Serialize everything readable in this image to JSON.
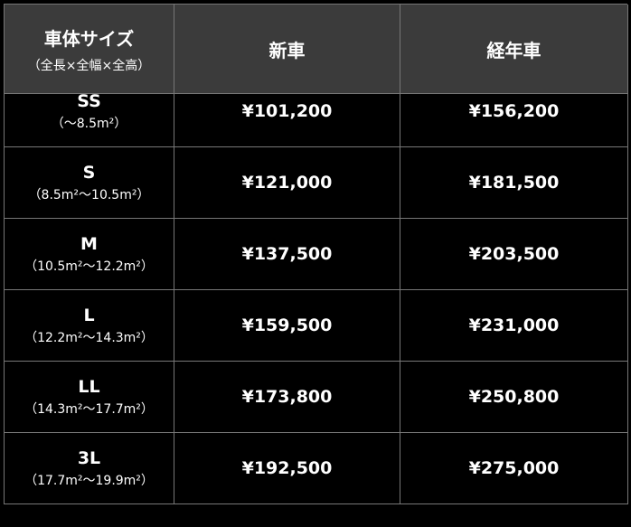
{
  "header": {
    "size_title": "車体サイズ",
    "size_note": "（全長×全幅×全高）",
    "new_car": "新車",
    "old_car": "経年車"
  },
  "rows": [
    {
      "size": "SS",
      "range": "（〜8.5m²）",
      "new_price": "¥101,200",
      "old_price": "¥156,200"
    },
    {
      "size": "S",
      "range": "（8.5m²〜10.5m²）",
      "new_price": "¥121,000",
      "old_price": "¥181,500"
    },
    {
      "size": "M",
      "range": "（10.5m²〜12.2m²）",
      "new_price": "¥137,500",
      "old_price": "¥203,500"
    },
    {
      "size": "L",
      "range": "（12.2m²〜14.3m²）",
      "new_price": "¥159,500",
      "old_price": "¥231,000"
    },
    {
      "size": "LL",
      "range": "（14.3m²〜17.7m²）",
      "new_price": "¥173,800",
      "old_price": "¥250,800"
    },
    {
      "size": "3L",
      "range": "（17.7m²〜19.9m²）",
      "new_price": "¥192,500",
      "old_price": "¥275,000"
    }
  ]
}
